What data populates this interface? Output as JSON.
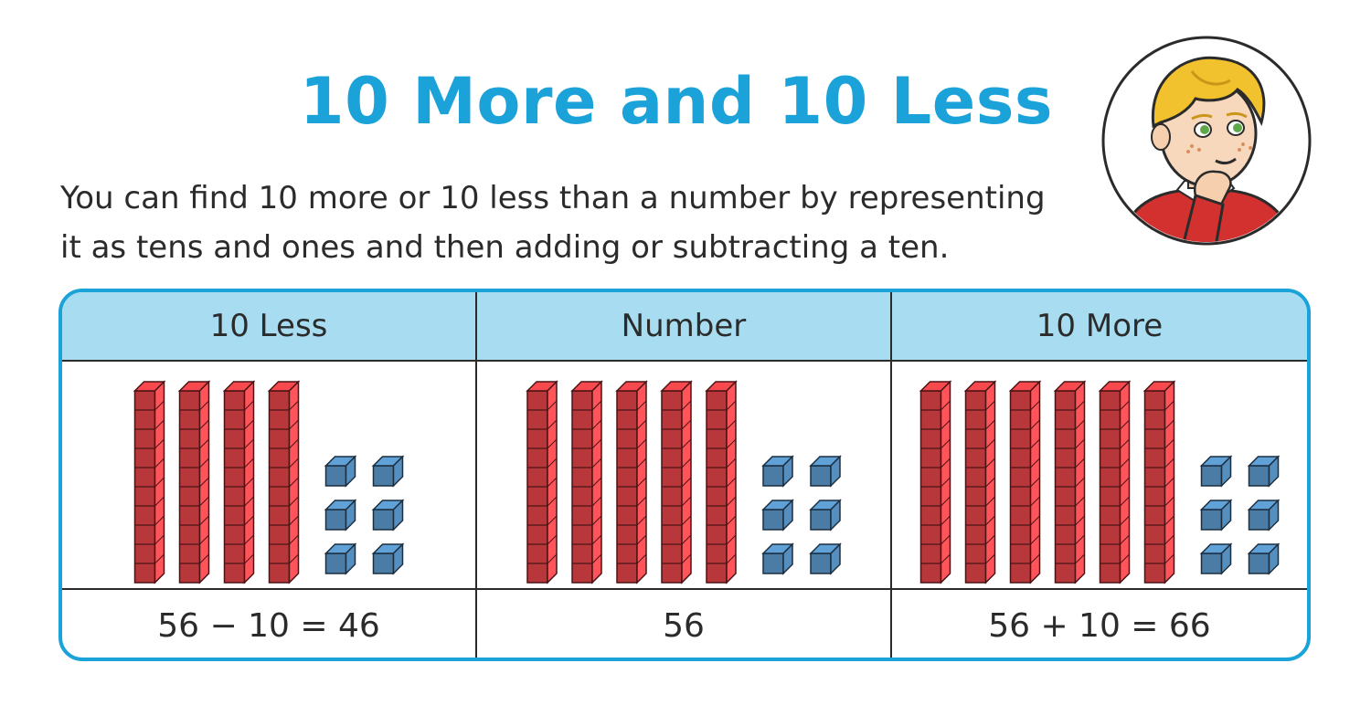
{
  "title": "10 More and 10 Less",
  "intro": {
    "line1": "You can find 10 more or 10 less than a number by representing",
    "line2": "it as tens and ones and then adding or subtracting a ten."
  },
  "table": {
    "columns": [
      {
        "header": "10 Less",
        "equation": "56 − 10 = 46",
        "tens": 4,
        "ones": 6
      },
      {
        "header": "Number",
        "equation": "56",
        "tens": 5,
        "ones": 6
      },
      {
        "header": "10 More",
        "equation": "56 + 10 = 66",
        "tens": 6,
        "ones": 6
      }
    ]
  },
  "colors": {
    "accent": "#1ba3d9",
    "header_bg": "#a8dcf0",
    "ten_rod": "#b8373a",
    "one_cube": "#4a7ca6"
  },
  "avatar_icon": "thinking-boy-icon"
}
